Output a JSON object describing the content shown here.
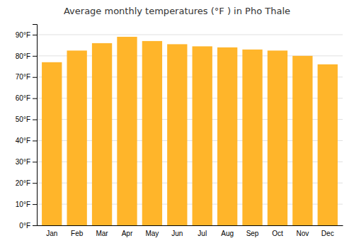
{
  "chart_data": {
    "type": "bar",
    "title": "Average monthly temperatures (°F ) in Pho Thale",
    "categories": [
      "Jan",
      "Feb",
      "Mar",
      "Apr",
      "May",
      "Jun",
      "Jul",
      "Aug",
      "Sep",
      "Oct",
      "Nov",
      "Dec"
    ],
    "values": [
      77,
      82.5,
      86,
      89,
      87,
      85.5,
      84.5,
      84,
      83,
      82.5,
      80,
      76
    ],
    "color": "#FFB52A",
    "ylim": [
      0,
      95
    ],
    "yticks": [
      {
        "value": 0,
        "label": "0°F"
      },
      {
        "value": 10,
        "label": "10°F"
      },
      {
        "value": 20,
        "label": "20°F"
      },
      {
        "value": 30,
        "label": "30°F"
      },
      {
        "value": 40,
        "label": "40°F"
      },
      {
        "value": 50,
        "label": "50°F"
      },
      {
        "value": 60,
        "label": "60°F"
      },
      {
        "value": 70,
        "label": "70°F"
      },
      {
        "value": 80,
        "label": "80°F"
      },
      {
        "value": 90,
        "label": "90°F"
      }
    ],
    "grid": true
  }
}
